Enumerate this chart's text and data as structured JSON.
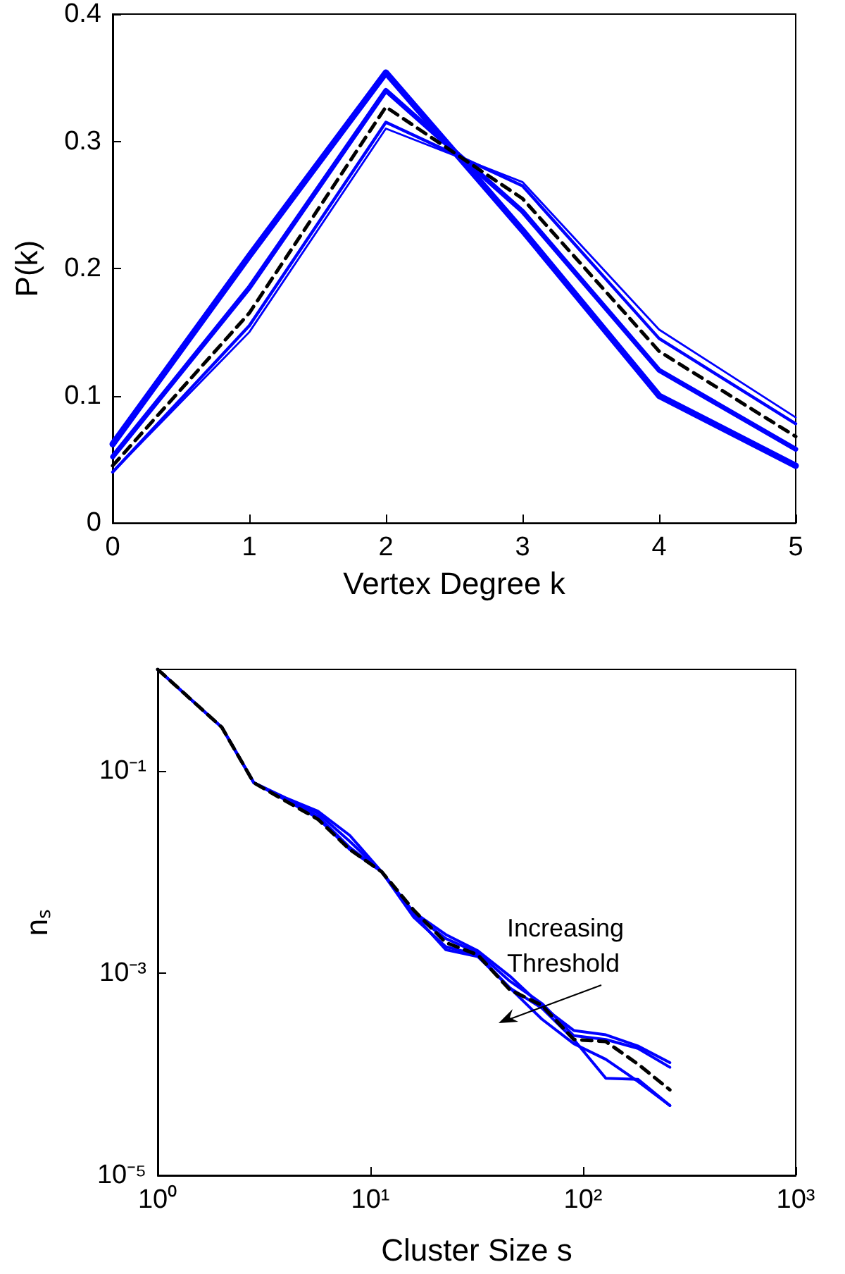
{
  "chart_data": [
    {
      "type": "line",
      "xlabel": "Vertex Degree k",
      "ylabel": "P(k)",
      "x": [
        0,
        1,
        2,
        3,
        4,
        5
      ],
      "xlim": [
        0,
        5
      ],
      "xticks": [
        0,
        1,
        2,
        3,
        4,
        5
      ],
      "ylim": [
        0,
        0.4
      ],
      "yticks": [
        0,
        0.1,
        0.2,
        0.3,
        0.4
      ],
      "grid": false,
      "marker": "none",
      "series": [
        {
          "color": "#0000ff",
          "line_style": "solid",
          "values": [
            0.062,
            0.21,
            0.354,
            0.23,
            0.1,
            0.045
          ]
        },
        {
          "color": "#0000ff",
          "line_style": "solid",
          "values": [
            0.052,
            0.185,
            0.34,
            0.245,
            0.12,
            0.058
          ]
        },
        {
          "color": "#000000",
          "line_style": "dashed",
          "values": [
            0.045,
            0.165,
            0.327,
            0.255,
            0.135,
            0.068
          ]
        },
        {
          "color": "#0000ff",
          "line_style": "solid",
          "values": [
            0.04,
            0.155,
            0.315,
            0.265,
            0.145,
            0.078
          ]
        },
        {
          "color": "#0000ff",
          "line_style": "solid",
          "values": [
            0.04,
            0.15,
            0.31,
            0.268,
            0.152,
            0.083
          ]
        }
      ]
    },
    {
      "type": "line",
      "xlabel": "Cluster Size s",
      "ylabel": "nₛ",
      "log": "xy",
      "x": [
        1,
        2,
        2.83,
        4,
        5.66,
        8,
        11.3,
        16,
        22.6,
        32,
        45.3,
        64,
        90.5,
        128,
        181,
        256
      ],
      "xlim": [
        1,
        1000
      ],
      "xticks": [
        {
          "value": 1,
          "label": "10⁰"
        },
        {
          "value": 10,
          "label": "10¹"
        },
        {
          "value": 100,
          "label": "10²"
        },
        {
          "value": 1000,
          "label": "10³"
        }
      ],
      "ylim": [
        1e-05,
        1
      ],
      "yticks": [
        {
          "value": 1e-05,
          "label": "10⁻⁵"
        },
        {
          "value": 0.001,
          "label": "10⁻³"
        },
        {
          "value": 0.1,
          "label": "10⁻¹"
        }
      ],
      "grid": false,
      "marker": "none",
      "annotations": [
        "Increasing Threshold"
      ],
      "series": [
        {
          "color": "#0000ff",
          "line_style": "solid",
          "values": [
            1,
            0.268,
            0.0759,
            0.0537,
            0.0398,
            0.0229,
            0.01,
            0.00398,
            0.0024,
            0.00166,
            0.00093,
            0.00047,
            0.00027,
            0.000245,
            0.00019,
            0.00013
          ]
        },
        {
          "color": "#0000ff",
          "line_style": "solid",
          "values": [
            1,
            0.268,
            0.0759,
            0.0525,
            0.038,
            0.02,
            0.01,
            0.0038,
            0.00219,
            0.00158,
            0.00083,
            0.0005,
            0.00024,
            0.00022,
            0.00018,
            0.000117
          ]
        },
        {
          "color": "#0000ff",
          "line_style": "solid",
          "values": [
            1,
            0.268,
            0.0759,
            0.0513,
            0.0355,
            0.0174,
            0.01,
            0.00355,
            0.00182,
            0.00151,
            0.00071,
            0.00035,
            0.0002,
            0.00014,
            8.5e-05,
            4.9e-05
          ]
        },
        {
          "color": "#0000ff",
          "line_style": "solid",
          "values": [
            1,
            0.268,
            0.0759,
            0.0513,
            0.0339,
            0.0166,
            0.01,
            0.0038,
            0.0017,
            0.00145,
            0.00071,
            0.00045,
            0.00022,
            9.1e-05,
            8.9e-05,
            4.9e-05
          ]
        },
        {
          "color": "#000000",
          "line_style": "dashed",
          "values": [
            1,
            0.268,
            0.0759,
            0.05,
            0.0331,
            0.0166,
            0.01,
            0.00417,
            0.002,
            0.00151,
            0.00068,
            0.00048,
            0.00022,
            0.00021,
            0.000126,
            7e-05
          ]
        }
      ]
    }
  ]
}
